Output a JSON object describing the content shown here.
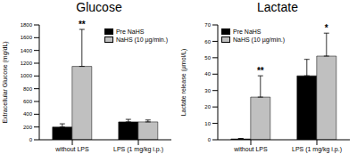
{
  "chart_data": [
    {
      "type": "bar",
      "title": "Glucose",
      "y_label": "Extracellular Glucose (mg/dL)",
      "categories": [
        "without LPS",
        "LPS (1 mg/kg i.p.)"
      ],
      "series": [
        {
          "name": "Pre NaHS",
          "color": "#000000",
          "values": [
            200,
            280
          ],
          "errors": [
            50,
            40
          ]
        },
        {
          "name": "NaHS (10 µg/min.)",
          "color": "#c0c0c0",
          "values": [
            1150,
            280
          ],
          "errors": [
            580,
            30
          ]
        }
      ],
      "ylim": [
        0,
        1800
      ],
      "yticks": [
        0,
        200,
        400,
        600,
        800,
        1000,
        1200,
        1400,
        1600,
        1800
      ],
      "legend": "upper right",
      "annotations": [
        {
          "text": "**",
          "category": "without LPS",
          "series": "NaHS (10 µg/min.)"
        }
      ]
    },
    {
      "type": "bar",
      "title": "Lactate",
      "y_label": "Lactate release (µmol/L)",
      "categories": [
        "without LPS",
        "LPS (1 mg/kg i.p.)"
      ],
      "series": [
        {
          "name": "Pre NaHS",
          "color": "#000000",
          "values": [
            0.5,
            39
          ],
          "errors": [
            0.3,
            10
          ]
        },
        {
          "name": "NaHS (10 µg/min.)",
          "color": "#c0c0c0",
          "values": [
            26,
            51
          ],
          "errors": [
            13,
            14
          ]
        }
      ],
      "ylim": [
        0,
        70
      ],
      "yticks": [
        0,
        10,
        20,
        30,
        40,
        50,
        60,
        70
      ],
      "legend": "upper left",
      "annotations": [
        {
          "text": "**",
          "category": "without LPS",
          "series": "NaHS (10 µg/min.)"
        },
        {
          "text": "*",
          "category": "LPS (1 mg/kg i.p.)",
          "series": "NaHS (10 µg/min.)"
        }
      ]
    }
  ]
}
